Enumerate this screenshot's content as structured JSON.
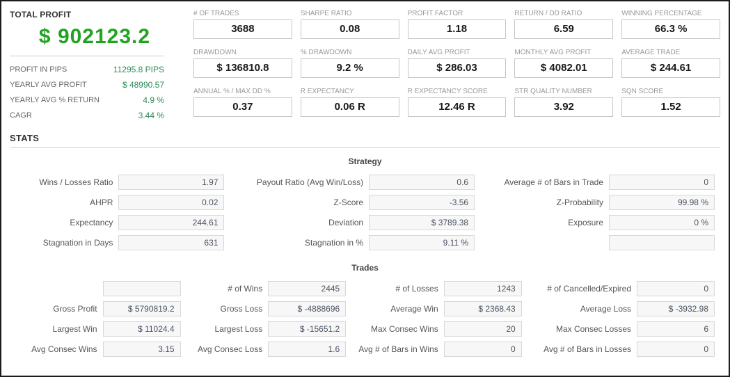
{
  "colors": {
    "total_profit_green": "#22a322",
    "summary_value_green": "#2e8b57",
    "page_border": "#1c1c1c",
    "box_border": "#c6c6c6",
    "stat_box_bg": "#f7f7f7"
  },
  "summary": {
    "title": "TOTAL PROFIT",
    "total": "$ 902123.2",
    "rows": [
      {
        "label": "PROFIT IN PIPS",
        "value": "11295.8 PIPS"
      },
      {
        "label": "YEARLY AVG PROFIT",
        "value": "$ 48990.57"
      },
      {
        "label": "YEARLY AVG % RETURN",
        "value": "4.9 %"
      },
      {
        "label": "CAGR",
        "value": "3.44 %"
      }
    ]
  },
  "metrics": [
    {
      "label": "# OF TRADES",
      "value": "3688"
    },
    {
      "label": "SHARPE RATIO",
      "value": "0.08"
    },
    {
      "label": "PROFIT FACTOR",
      "value": "1.18"
    },
    {
      "label": "RETURN / DD RATIO",
      "value": "6.59"
    },
    {
      "label": "WINNING PERCENTAGE",
      "value": "66.3 %"
    },
    {
      "label": "DRAWDOWN",
      "value": "$ 136810.8"
    },
    {
      "label": "% DRAWDOWN",
      "value": "9.2 %"
    },
    {
      "label": "DAILY AVG PROFIT",
      "value": "$ 286.03"
    },
    {
      "label": "MONTHLY AVG PROFIT",
      "value": "$ 4082.01"
    },
    {
      "label": "AVERAGE TRADE",
      "value": "$ 244.61"
    },
    {
      "label": "ANNUAL % / MAX DD %",
      "value": "0.37"
    },
    {
      "label": "R EXPECTANCY",
      "value": "0.06 R"
    },
    {
      "label": "R EXPECTANCY SCORE",
      "value": "12.46 R"
    },
    {
      "label": "STR QUALITY NUMBER",
      "value": "3.92"
    },
    {
      "label": "SQN SCORE",
      "value": "1.52"
    }
  ],
  "stats": {
    "title": "STATS",
    "strategy": {
      "title": "Strategy",
      "rows": [
        [
          {
            "label": "Wins / Losses Ratio",
            "value": "1.97"
          },
          {
            "label": "Payout Ratio (Avg Win/Loss)",
            "value": "0.6"
          },
          {
            "label": "Average # of Bars in Trade",
            "value": "0"
          }
        ],
        [
          {
            "label": "AHPR",
            "value": "0.02"
          },
          {
            "label": "Z-Score",
            "value": "-3.56"
          },
          {
            "label": "Z-Probability",
            "value": "99.98 %"
          }
        ],
        [
          {
            "label": "Expectancy",
            "value": "244.61"
          },
          {
            "label": "Deviation",
            "value": "$ 3789.38"
          },
          {
            "label": "Exposure",
            "value": "0 %"
          }
        ],
        [
          {
            "label": "Stagnation in Days",
            "value": "631"
          },
          {
            "label": "Stagnation in %",
            "value": "9.11 %"
          },
          {
            "label": "",
            "value": ""
          }
        ]
      ]
    },
    "trades": {
      "title": "Trades",
      "rows": [
        [
          {
            "label": "",
            "value": ""
          },
          {
            "label": "# of Wins",
            "value": "2445"
          },
          {
            "label": "# of Losses",
            "value": "1243"
          },
          {
            "label": "# of Cancelled/Expired",
            "value": "0"
          }
        ],
        [
          {
            "label": "Gross Profit",
            "value": "$ 5790819.2"
          },
          {
            "label": "Gross Loss",
            "value": "$ -4888696"
          },
          {
            "label": "Average Win",
            "value": "$ 2368.43"
          },
          {
            "label": "Average Loss",
            "value": "$ -3932.98"
          }
        ],
        [
          {
            "label": "Largest Win",
            "value": "$ 11024.4"
          },
          {
            "label": "Largest Loss",
            "value": "$ -15651.2"
          },
          {
            "label": "Max Consec Wins",
            "value": "20"
          },
          {
            "label": "Max Consec Losses",
            "value": "6"
          }
        ],
        [
          {
            "label": "Avg Consec Wins",
            "value": "3.15"
          },
          {
            "label": "Avg Consec Loss",
            "value": "1.6"
          },
          {
            "label": "Avg # of Bars in Wins",
            "value": "0"
          },
          {
            "label": "Avg # of Bars in Losses",
            "value": "0"
          }
        ]
      ]
    }
  }
}
